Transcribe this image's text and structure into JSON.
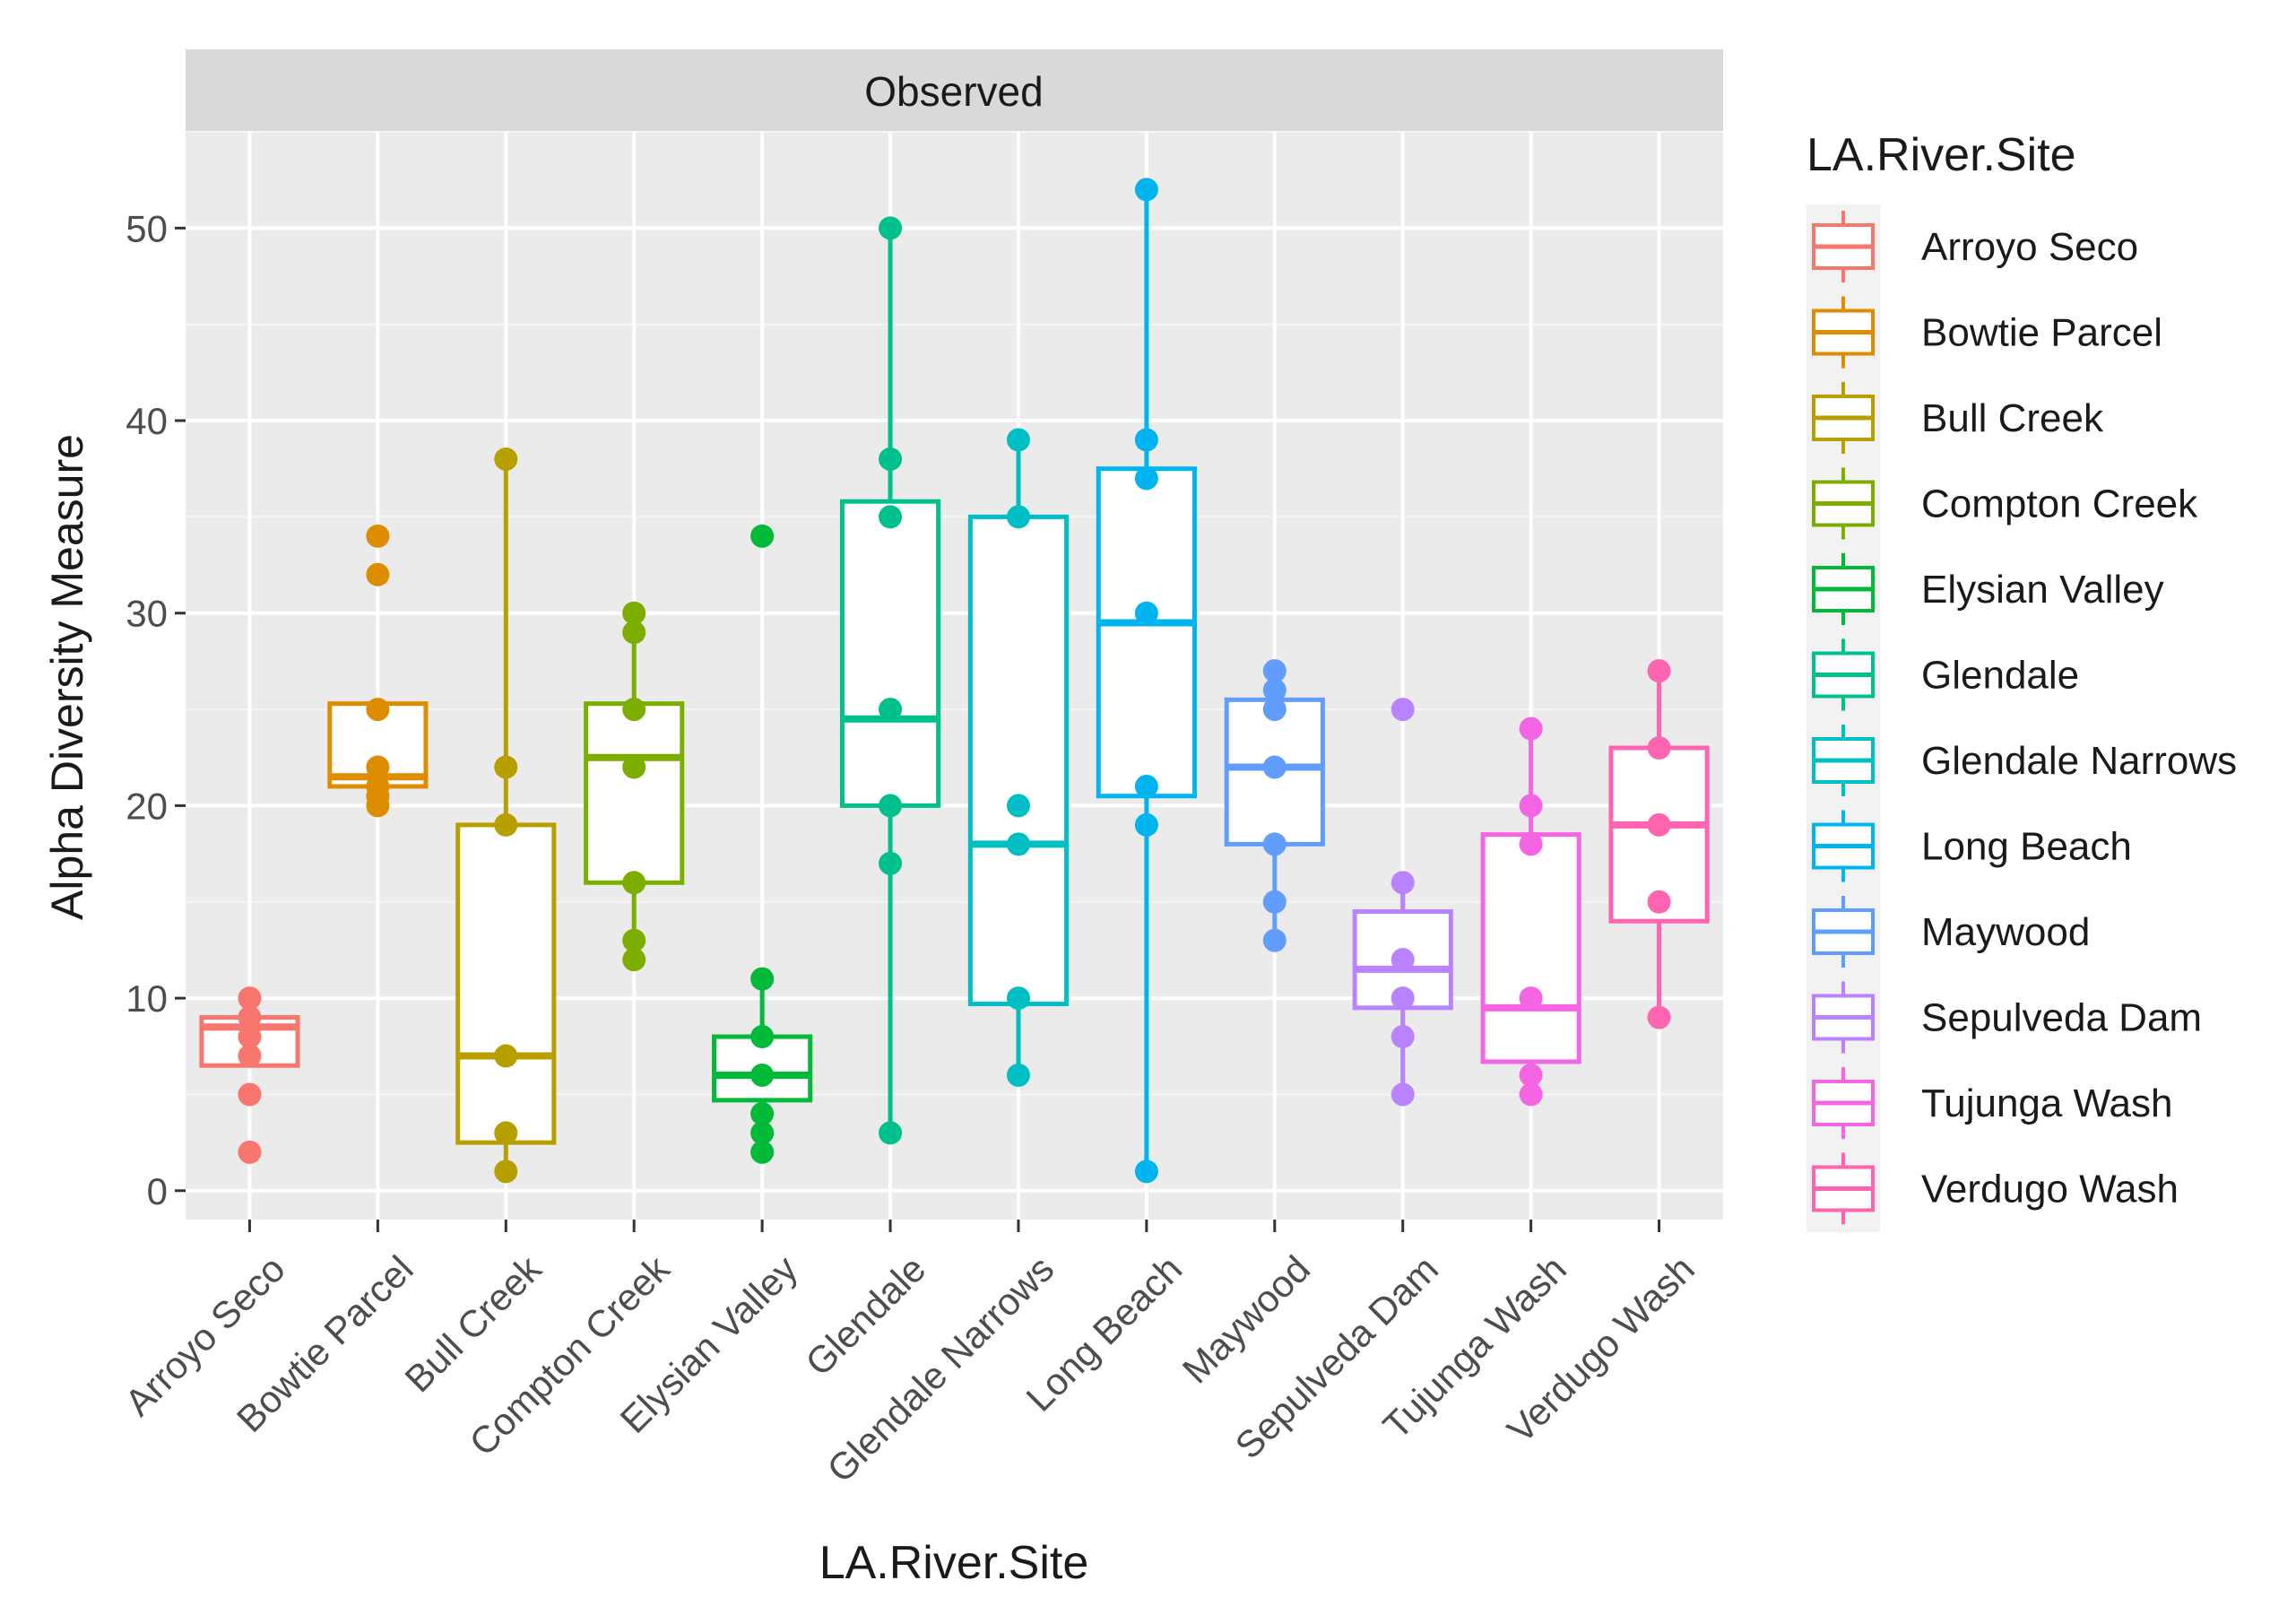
{
  "chart_data": {
    "type": "box",
    "facet_label": "Observed",
    "xlabel": "LA.River.Site",
    "ylabel": "Alpha Diversity Measure",
    "ylim": [
      -1.5,
      55
    ],
    "yticks": [
      0,
      10,
      20,
      30,
      40,
      50
    ],
    "legend_title": "LA.River.Site",
    "legend_position": "right",
    "grid": true,
    "categories": [
      {
        "name": "Arroyo Seco",
        "color": "#F8766D",
        "q1": 6.5,
        "median": 8.5,
        "q3": 9.0,
        "lo": 6.5,
        "hi": 9.0,
        "points": [
          10,
          9,
          8,
          7,
          5,
          2
        ]
      },
      {
        "name": "Bowtie Parcel",
        "color": "#DE8C00",
        "q1": 21.0,
        "median": 21.5,
        "q3": 25.3,
        "lo": 21.0,
        "hi": 25.3,
        "points": [
          34,
          32,
          25,
          22,
          21,
          20.5,
          20
        ]
      },
      {
        "name": "Bull Creek",
        "color": "#B79F00",
        "q1": 2.5,
        "median": 7.0,
        "q3": 19.0,
        "lo": 1.0,
        "hi": 38.0,
        "points": [
          38,
          22,
          19,
          7,
          3,
          1
        ]
      },
      {
        "name": "Compton Creek",
        "color": "#7CAE00",
        "q1": 16.0,
        "median": 22.5,
        "q3": 25.3,
        "lo": 12.0,
        "hi": 30.0,
        "points": [
          30,
          29,
          25,
          22,
          16,
          13,
          12
        ]
      },
      {
        "name": "Elysian Valley",
        "color": "#00BA38",
        "q1": 4.7,
        "median": 6.0,
        "q3": 8.0,
        "lo": 2.0,
        "hi": 11.0,
        "points": [
          34,
          11,
          8,
          6,
          4,
          3,
          2
        ]
      },
      {
        "name": "Glendale",
        "color": "#00C08B",
        "q1": 20.0,
        "median": 24.5,
        "q3": 35.8,
        "lo": 3.0,
        "hi": 50.0,
        "points": [
          50,
          38,
          35,
          25,
          20,
          17,
          3
        ]
      },
      {
        "name": "Glendale Narrows",
        "color": "#00BFC4",
        "q1": 9.7,
        "median": 18.0,
        "q3": 35.0,
        "lo": 6.0,
        "hi": 39.0,
        "points": [
          39,
          35,
          20,
          18,
          10,
          6
        ]
      },
      {
        "name": "Long Beach",
        "color": "#00B4F0",
        "q1": 20.5,
        "median": 29.5,
        "q3": 37.5,
        "lo": 1.0,
        "hi": 52.0,
        "points": [
          52,
          39,
          37,
          30,
          21,
          19,
          1
        ]
      },
      {
        "name": "Maywood",
        "color": "#619CFF",
        "q1": 18.0,
        "median": 22.0,
        "q3": 25.5,
        "lo": 13.0,
        "hi": 27.0,
        "points": [
          27,
          26,
          25,
          22,
          18,
          15,
          13
        ]
      },
      {
        "name": "Sepulveda Dam",
        "color": "#B983FF",
        "q1": 9.5,
        "median": 11.5,
        "q3": 14.5,
        "lo": 5.0,
        "hi": 16.0,
        "points": [
          25,
          16,
          12,
          10,
          8,
          5
        ]
      },
      {
        "name": "Tujunga Wash",
        "color": "#F564E3",
        "q1": 6.7,
        "median": 9.5,
        "q3": 18.5,
        "lo": 5.0,
        "hi": 24.0,
        "points": [
          24,
          20,
          18,
          10,
          6,
          5
        ]
      },
      {
        "name": "Verdugo Wash",
        "color": "#FF64B0",
        "q1": 14.0,
        "median": 19.0,
        "q3": 23.0,
        "lo": 9.0,
        "hi": 27.0,
        "points": [
          27,
          23,
          19,
          15,
          9
        ]
      }
    ]
  }
}
